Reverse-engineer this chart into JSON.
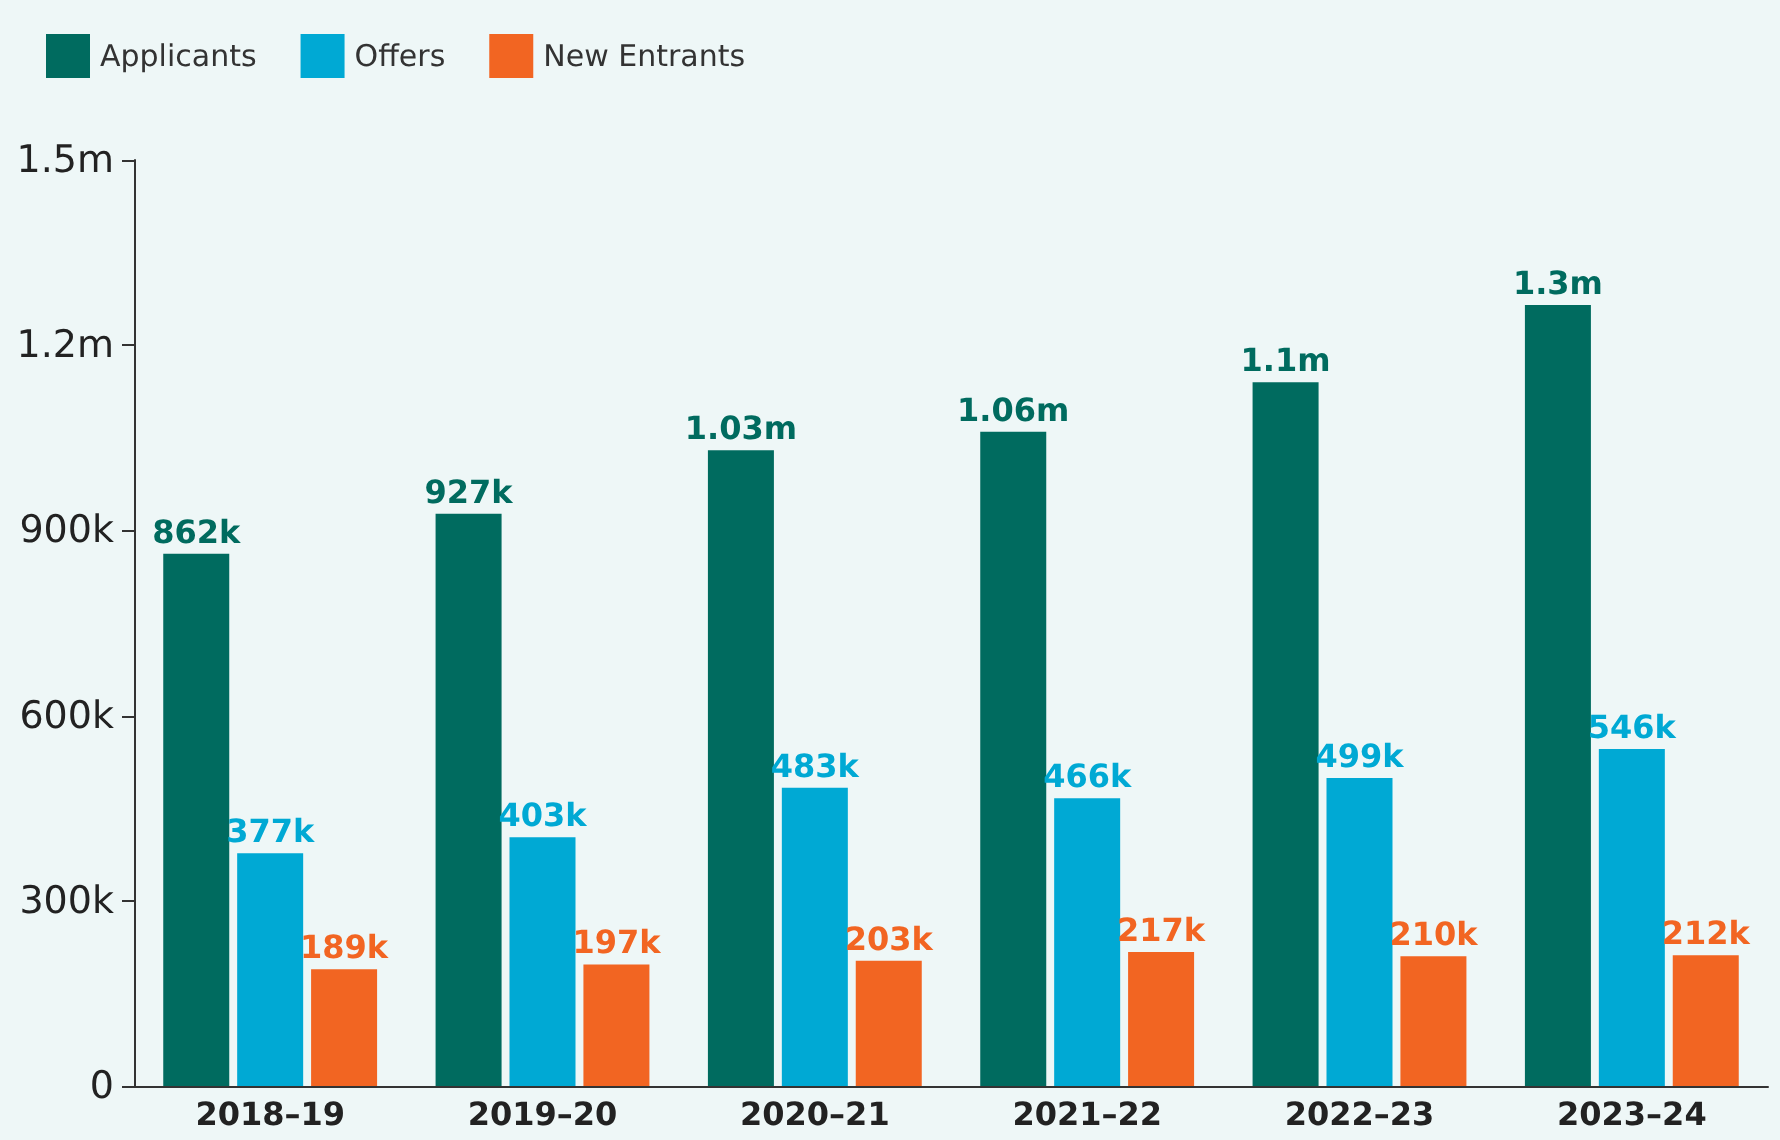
{
  "chart_data": {
    "type": "bar",
    "categories": [
      "2018–19",
      "2019–20",
      "2020–21",
      "2021–22",
      "2022–23",
      "2023–24"
    ],
    "series": [
      {
        "name": "Applicants",
        "color": "#006b5f",
        "values": [
          862000,
          927000,
          1030000,
          1060000,
          1140000,
          1265000
        ],
        "value_labels": [
          "862k",
          "927k",
          "1.03m",
          "1.06m",
          "1.1m",
          "1.3m"
        ]
      },
      {
        "name": "Offers",
        "color": "#00a9d4",
        "values": [
          377000,
          403000,
          483000,
          466000,
          499000,
          546000
        ],
        "value_labels": [
          "377k",
          "403k",
          "483k",
          "466k",
          "499k",
          "546k"
        ]
      },
      {
        "name": "New Entrants",
        "color": "#f26522",
        "values": [
          189000,
          197000,
          203000,
          217000,
          210000,
          212000
        ],
        "value_labels": [
          "189k",
          "197k",
          "203k",
          "217k",
          "210k",
          "212k"
        ]
      }
    ],
    "ylim": [
      0,
      1500000
    ],
    "yticks": [
      0,
      {
        "value": 300000,
        "label": "300k"
      },
      {
        "value": 600000,
        "label": "600k"
      },
      {
        "value": 900000,
        "label": "900k"
      },
      {
        "value": 1200000,
        "label": "1.2m"
      },
      {
        "value": 1500000,
        "label": "1.5m"
      }
    ],
    "grid": false,
    "legend": "top left"
  }
}
